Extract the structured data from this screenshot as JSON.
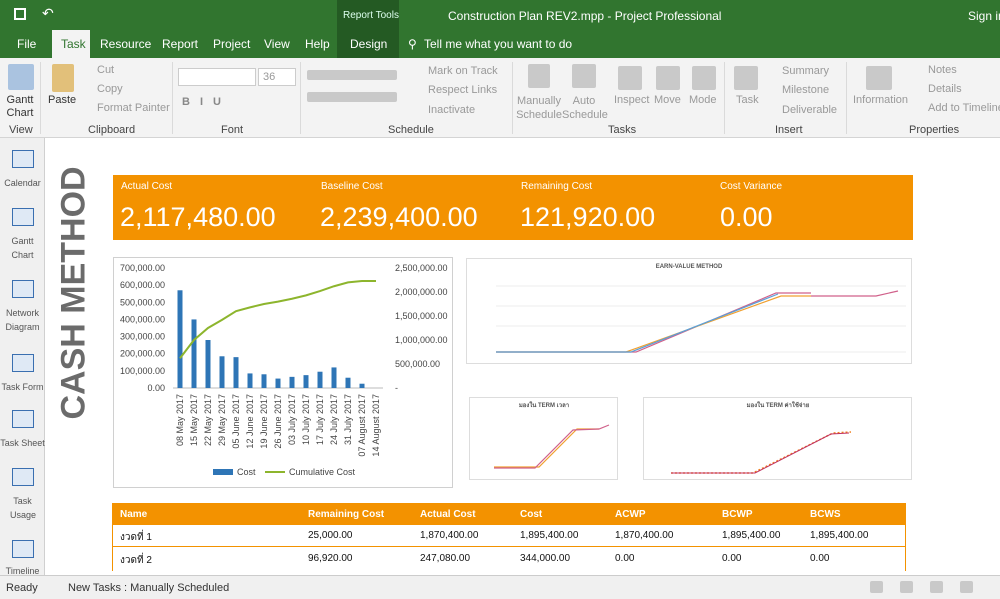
{
  "title_bar": {
    "context_tab": "Report Tools",
    "document": "Construction Plan REV2.mpp  -  Project Professional",
    "sign_in": "Sign in"
  },
  "tabs": [
    "File",
    "Task",
    "Resource",
    "Report",
    "Project",
    "View",
    "Help",
    "Design"
  ],
  "tell_me": "Tell me what you want to do",
  "ribbon": {
    "groups": [
      "View",
      "Clipboard",
      "Font",
      "Schedule",
      "Tasks",
      "Insert",
      "Properties"
    ],
    "gantt_chart": "Gantt Chart",
    "paste": "Paste",
    "cut": "Cut",
    "copy": "Copy",
    "format_painter": "Format Painter",
    "font_size": "36",
    "mark_on_track": "Mark on Track",
    "respect_links": "Respect Links",
    "inactivate": "Inactivate",
    "manually_schedule": "Manually Schedule",
    "auto_schedule": "Auto Schedule",
    "inspect": "Inspect",
    "move": "Move",
    "mode": "Mode",
    "task": "Task",
    "summary": "Summary",
    "milestone": "Milestone",
    "deliverable": "Deliverable",
    "information": "Information",
    "notes": "Notes",
    "details": "Details",
    "add_to_timeline": "Add to Timeline"
  },
  "views": [
    "Calendar",
    "Gantt Chart",
    "Network Diagram",
    "Task Form",
    "Task Sheet",
    "Task Usage",
    "Timeline"
  ],
  "report": {
    "heading": "CASH METHOD",
    "kpis": [
      {
        "label": "Actual Cost",
        "value": "2,117,480.00"
      },
      {
        "label": "Baseline Cost",
        "value": "2,239,400.00"
      },
      {
        "label": "Remaining Cost",
        "value": "121,920.00"
      },
      {
        "label": "Cost Variance",
        "value": "0.00"
      }
    ],
    "small_charts": [
      "EARN-VALUE METHOD",
      "มองใน TERM เวลา",
      "มองใน TERM ค่าใช้จ่าย"
    ],
    "table": {
      "headers": [
        "Name",
        "Remaining Cost",
        "Actual Cost",
        "Cost",
        "ACWP",
        "BCWP",
        "BCWS"
      ],
      "rows": [
        [
          "งวดที่ 1",
          "25,000.00",
          "1,870,400.00",
          "1,895,400.00",
          "1,870,400.00",
          "1,895,400.00",
          "1,895,400.00"
        ],
        [
          "งวดที่ 2",
          "96,920.00",
          "247,080.00",
          "344,000.00",
          "0.00",
          "0.00",
          "0.00"
        ]
      ]
    }
  },
  "chart_data": {
    "type": "bar_line",
    "categories": [
      "08 May 2017",
      "15 May 2017",
      "22 May 2017",
      "29 May 2017",
      "05 June 2017",
      "12 June 2017",
      "19 June 2017",
      "26 June 2017",
      "03 July 2017",
      "10 July 2017",
      "17 July 2017",
      "24 July 2017",
      "31 July 2017",
      "07 August 2017",
      "14 August 2017"
    ],
    "series": [
      {
        "name": "Cost",
        "color": "#2e75b6",
        "values": [
          570000,
          400000,
          280000,
          185000,
          180000,
          85000,
          80000,
          55000,
          65000,
          75000,
          95000,
          120000,
          60000,
          25000,
          0
        ]
      },
      {
        "name": "Cumulative Cost",
        "color": "#8db52d",
        "axis": "y2",
        "values": [
          620000,
          1000000,
          1250000,
          1420000,
          1600000,
          1680000,
          1750000,
          1800000,
          1860000,
          1930000,
          2020000,
          2120000,
          2200000,
          2230000,
          2230000
        ]
      }
    ],
    "ylim": [
      0,
      700000
    ],
    "yticks": [
      {
        "value": 0,
        "label": "0.00"
      },
      {
        "value": 100000,
        "label": "100,000.00"
      },
      {
        "value": 200000,
        "label": "200,000.00"
      },
      {
        "value": 300000,
        "label": "300,000.00"
      },
      {
        "value": 400000,
        "label": "400,000.00"
      },
      {
        "value": 500000,
        "label": "500,000.00"
      },
      {
        "value": 600000,
        "label": "600,000.00"
      },
      {
        "value": 700000,
        "label": "700,000.00"
      }
    ],
    "y2lim": [
      0,
      2500000
    ],
    "y2ticks": [
      {
        "value": 0,
        "label": "-"
      },
      {
        "value": 500000,
        "label": "500,000.00"
      },
      {
        "value": 1000000,
        "label": "1,000,000.00"
      },
      {
        "value": 1500000,
        "label": "1,500,000.00"
      },
      {
        "value": 2000000,
        "label": "2,000,000.00"
      },
      {
        "value": 2500000,
        "label": "2,500,000.00"
      }
    ]
  },
  "status": {
    "ready": "Ready",
    "new_tasks": "New Tasks : Manually Scheduled"
  }
}
